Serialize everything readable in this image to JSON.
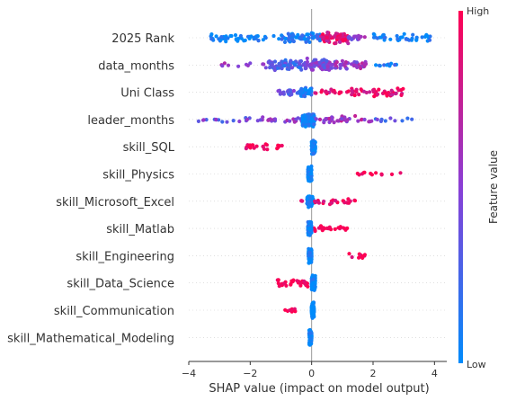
{
  "chart_data": {
    "type": "scatter",
    "subtype": "shap-beeswarm",
    "xlabel": "SHAP value (impact on model output)",
    "xlim": [
      -4.0,
      4.4
    ],
    "xticks": [
      -4,
      -2,
      0,
      2,
      4
    ],
    "features": [
      "2025 Rank",
      "data_months",
      "Uni Class",
      "leader_months",
      "skill_SQL",
      "skill_Physics",
      "skill_Microsoft_Excel",
      "skill_Matlab",
      "skill_Engineering",
      "skill_Data_Science",
      "skill_Communication",
      "skill_Mathematical_Modeling"
    ],
    "colorbar": {
      "label": "Feature value",
      "high": "High",
      "low": "Low"
    },
    "colors": {
      "low": "#008bfb",
      "high": "#ff0052",
      "zero_line": "#999999",
      "grid": "#cccccc"
    },
    "point_distributions": [
      {
        "feature": "2025 Rank",
        "ranges": [
          [
            -3.5,
            -1.0,
            0.0,
            45
          ],
          [
            -1.0,
            0.3,
            0.1,
            60
          ],
          [
            0.3,
            1.2,
            0.85,
            70
          ],
          [
            1.2,
            1.8,
            0.5,
            18
          ],
          [
            2.0,
            3.9,
            0.05,
            40
          ]
        ]
      },
      {
        "feature": "data_months",
        "ranges": [
          [
            -3.0,
            -1.5,
            0.5,
            10
          ],
          [
            -1.5,
            -0.3,
            0.3,
            60
          ],
          [
            -0.3,
            0.6,
            0.45,
            80
          ],
          [
            0.6,
            1.8,
            0.55,
            45
          ],
          [
            2.0,
            2.8,
            0.1,
            10
          ]
        ]
      },
      {
        "feature": "Uni Class",
        "ranges": [
          [
            -1.1,
            -0.4,
            0.35,
            25
          ],
          [
            -0.4,
            0.0,
            0.1,
            45
          ],
          [
            0.0,
            1.2,
            0.85,
            18
          ],
          [
            1.2,
            3.0,
            0.9,
            45
          ]
        ]
      },
      {
        "feature": "leader_months",
        "ranges": [
          [
            -3.7,
            -1.5,
            0.4,
            20
          ],
          [
            -1.5,
            -0.3,
            0.5,
            20
          ],
          [
            -0.3,
            0.1,
            0.05,
            120
          ],
          [
            0.1,
            2.0,
            0.6,
            35
          ],
          [
            2.0,
            3.4,
            0.3,
            10
          ]
        ]
      },
      {
        "feature": "skill_SQL",
        "ranges": [
          [
            -2.2,
            -0.9,
            1.0,
            22
          ],
          [
            0.0,
            0.12,
            0.0,
            120
          ]
        ]
      },
      {
        "feature": "skill_Physics",
        "ranges": [
          [
            1.4,
            3.0,
            1.0,
            12
          ],
          [
            -0.12,
            0.0,
            0.0,
            120
          ]
        ]
      },
      {
        "feature": "skill_Microsoft_Excel",
        "ranges": [
          [
            -0.5,
            -0.3,
            1.0,
            3
          ],
          [
            -0.15,
            0.05,
            0.0,
            80
          ],
          [
            0.05,
            1.5,
            0.95,
            25
          ]
        ]
      },
      {
        "feature": "skill_Matlab",
        "ranges": [
          [
            0.05,
            1.2,
            1.0,
            22
          ],
          [
            -0.12,
            0.0,
            0.0,
            120
          ]
        ]
      },
      {
        "feature": "skill_Engineering",
        "ranges": [
          [
            1.2,
            1.9,
            1.0,
            14
          ],
          [
            -0.1,
            0.0,
            0.0,
            120
          ]
        ]
      },
      {
        "feature": "skill_Data_Science",
        "ranges": [
          [
            -1.2,
            -0.1,
            1.0,
            35
          ],
          [
            0.0,
            0.12,
            0.0,
            120
          ]
        ]
      },
      {
        "feature": "skill_Communication",
        "ranges": [
          [
            -0.9,
            -0.5,
            1.0,
            9
          ],
          [
            0.0,
            0.08,
            0.0,
            120
          ]
        ]
      },
      {
        "feature": "skill_Mathematical_Modeling",
        "ranges": [
          [
            -0.08,
            0.0,
            0.0,
            110
          ]
        ]
      }
    ]
  }
}
